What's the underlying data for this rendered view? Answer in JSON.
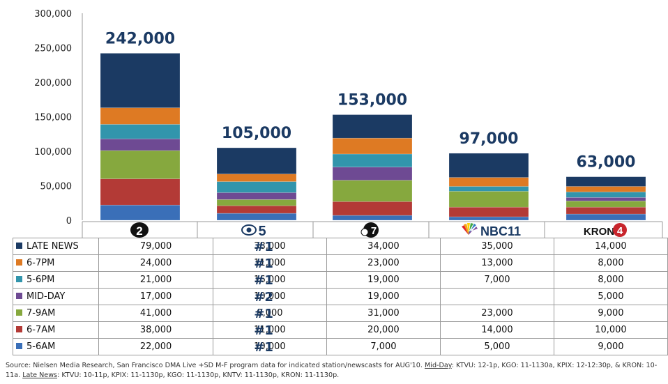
{
  "chart_data": {
    "type": "bar",
    "stacked": true,
    "ylim": [
      0,
      300000
    ],
    "y_ticks": [
      "0",
      "50,000",
      "100,000",
      "150,000",
      "200,000",
      "250,000",
      "300,000"
    ],
    "categories": [
      "KTVU 2",
      "KPIX CBS 5",
      "KGO ABC 7",
      "KNTV NBC 11",
      "KRON 4"
    ],
    "logo_texts": [
      "2",
      "5",
      "7",
      "NBC11",
      "KRON",
      "4"
    ],
    "totals": [
      "242,000",
      "105,000",
      "153,000",
      "97,000",
      "63,000"
    ],
    "series": [
      {
        "name": "5-6AM",
        "color": "#3a6fb8",
        "values": [
          22000,
          10000,
          7000,
          5000,
          9000
        ],
        "labels": [
          "22,000",
          "10,000",
          "7,000",
          "5,000",
          "9,000"
        ],
        "rank": "#1"
      },
      {
        "name": "6-7AM",
        "color": "#b33a36",
        "values": [
          38000,
          11000,
          20000,
          14000,
          10000
        ],
        "labels": [
          "38,000",
          "11,000",
          "20,000",
          "14,000",
          "10,000"
        ],
        "rank": "#1"
      },
      {
        "name": "7-9AM",
        "color": "#86a83e",
        "values": [
          41000,
          9000,
          31000,
          23000,
          9000
        ],
        "labels": [
          "41,000",
          "9,000",
          "31,000",
          "23,000",
          "9,000"
        ],
        "rank": "#1"
      },
      {
        "name": "MID-DAY",
        "color": "#6e4a93",
        "values": [
          17000,
          10000,
          19000,
          0,
          5000
        ],
        "labels": [
          "17,000",
          "10,000",
          "19,000",
          "",
          "5,000"
        ],
        "rank": "#2"
      },
      {
        "name": "5-6PM",
        "color": "#3295ac",
        "values": [
          21000,
          16000,
          19000,
          7000,
          8000
        ],
        "labels": [
          "21,000",
          "16,000",
          "19,000",
          "7,000",
          "8,000"
        ],
        "rank": "#1"
      },
      {
        "name": "6-7PM",
        "color": "#de7a23",
        "values": [
          24000,
          11000,
          23000,
          13000,
          8000
        ],
        "labels": [
          "24,000",
          "11,000",
          "23,000",
          "13,000",
          "8,000"
        ],
        "rank": "#1"
      },
      {
        "name": "LATE NEWS",
        "color": "#1b3a63",
        "values": [
          79000,
          38000,
          34000,
          35000,
          14000
        ],
        "labels": [
          "79,000",
          "38,000",
          "34,000",
          "35,000",
          "14,000"
        ],
        "rank": "#1"
      }
    ]
  },
  "source": {
    "p1": "Source:  Nielsen Media Research, San Francisco DMA Live +SD M-F program data for indicated station/newscasts for AUG'10.  ",
    "midday_label": "Mid-Day",
    "p2": ": KTVU: 12-1p, KGO: 11-1130a, KPIX: 12-12:30p, & KRON: 10-11a.  ",
    "late_label": "Late News",
    "p3": ":  KTVU: 10-11p, KPIX: 11-1130p, KGO: 11-1130p, KNTV: 11-1130p, KRON: 11-1130p."
  }
}
